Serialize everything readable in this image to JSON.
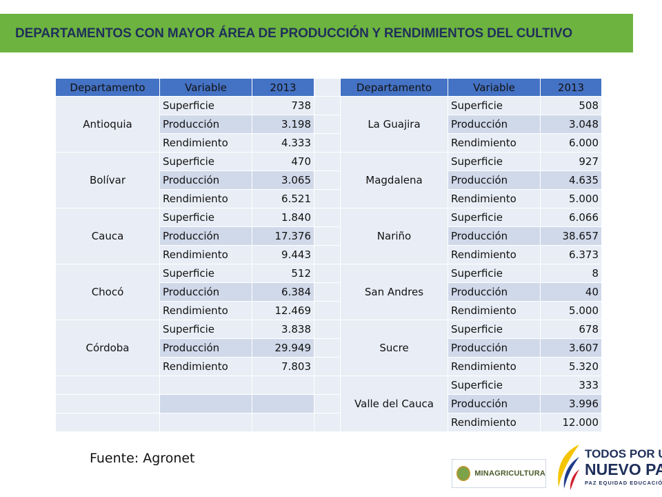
{
  "header": {
    "title": "DEPARTAMENTOS CON MAYOR ÁREA DE PRODUCCIÓN Y RENDIMIENTOS DEL CULTIVO"
  },
  "table": {
    "columns": [
      "Departamento",
      "Variable",
      "2013",
      "Departamento",
      "Variable",
      "2013"
    ],
    "left_groups": [
      {
        "dept": "Antioquia",
        "rows": [
          [
            "Superficie",
            "738"
          ],
          [
            "Producción",
            "3.198"
          ],
          [
            "Rendimiento",
            "4.333"
          ]
        ]
      },
      {
        "dept": "Bolívar",
        "rows": [
          [
            "Superficie",
            "470"
          ],
          [
            "Producción",
            "3.065"
          ],
          [
            "Rendimiento",
            "6.521"
          ]
        ]
      },
      {
        "dept": "Cauca",
        "rows": [
          [
            "Superficie",
            "1.840"
          ],
          [
            "Producción",
            "17.376"
          ],
          [
            "Rendimiento",
            "9.443"
          ]
        ]
      },
      {
        "dept": "Chocó",
        "rows": [
          [
            "Superficie",
            "512"
          ],
          [
            "Producción",
            "6.384"
          ],
          [
            "Rendimiento",
            "12.469"
          ]
        ]
      },
      {
        "dept": "Córdoba",
        "rows": [
          [
            "Superficie",
            "3.838"
          ],
          [
            "Producción",
            "29.949"
          ],
          [
            "Rendimiento",
            "7.803"
          ]
        ]
      },
      {
        "dept": "",
        "rows": [
          [
            "",
            ""
          ],
          [
            "",
            ""
          ],
          [
            "",
            ""
          ]
        ]
      }
    ],
    "right_groups": [
      {
        "dept": "La Guajira",
        "rows": [
          [
            "Superficie",
            "508"
          ],
          [
            "Producción",
            "3.048"
          ],
          [
            "Rendimiento",
            "6.000"
          ]
        ]
      },
      {
        "dept": "Magdalena",
        "rows": [
          [
            "Superficie",
            "927"
          ],
          [
            "Producción",
            "4.635"
          ],
          [
            "Rendimiento",
            "5.000"
          ]
        ]
      },
      {
        "dept": "Nariño",
        "rows": [
          [
            "Superficie",
            "6.066"
          ],
          [
            "Producción",
            "38.657"
          ],
          [
            "Rendimiento",
            "6.373"
          ]
        ]
      },
      {
        "dept": "San Andres",
        "rows": [
          [
            "Superficie",
            "8"
          ],
          [
            "Producción",
            "40"
          ],
          [
            "Rendimiento",
            "5.000"
          ]
        ]
      },
      {
        "dept": "Sucre",
        "rows": [
          [
            "Superficie",
            "678"
          ],
          [
            "Producción",
            "3.607"
          ],
          [
            "Rendimiento",
            "5.320"
          ]
        ]
      },
      {
        "dept": "Valle del Cauca",
        "rows": [
          [
            "Superficie",
            "333"
          ],
          [
            "Producción",
            "3.996"
          ],
          [
            "Rendimiento",
            "12.000"
          ]
        ]
      }
    ]
  },
  "footer": {
    "source": "Fuente: Agronet",
    "logo_minagricultura": "MINAGRICULTURA",
    "logo_tpn_line1": "TODOS POR UN",
    "logo_tpn_line2": "NUEVO PAÍS",
    "logo_tpn_line3": "PAZ  EQUIDAD  EDUCACIÓN"
  },
  "colors": {
    "title_bar": "#6db33f",
    "title_text": "#1f2f5a",
    "table_header": "#4472c4",
    "row_light": "#e9edf5",
    "row_dark": "#d0d9ea"
  }
}
